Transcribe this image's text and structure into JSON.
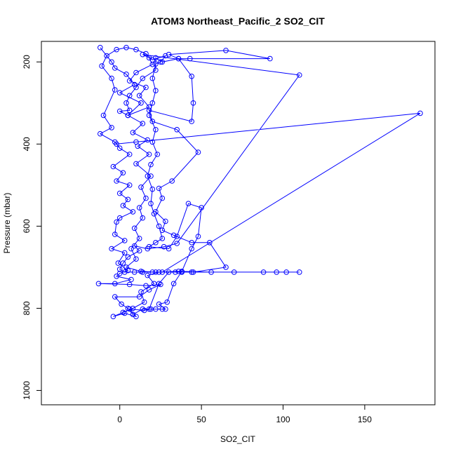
{
  "chart_data": {
    "type": "line",
    "title": "ATOM3 Northeast_Pacific_2 SO2_CIT",
    "xlabel": "SO2_CIT",
    "ylabel": "Pressure (mbar)",
    "xlim": [
      -48,
      193
    ],
    "ylim": [
      1035,
      150
    ],
    "y_reversed": true,
    "x_ticks": [
      0,
      50,
      100,
      150
    ],
    "y_ticks": [
      200,
      400,
      600,
      800,
      1000
    ],
    "grid": false,
    "legend": "none",
    "series_color": "#0000ff",
    "marker": "open-circle",
    "series": [
      {
        "name": "",
        "points": [
          [
            -12,
            165
          ],
          [
            -5,
            200
          ],
          [
            -3,
            215
          ],
          [
            4,
            230
          ],
          [
            9,
            255
          ],
          [
            0,
            275
          ],
          [
            13,
            300
          ],
          [
            5,
            330
          ],
          [
            14,
            350
          ],
          [
            8,
            372
          ],
          [
            17,
            390
          ],
          [
            11,
            405
          ],
          [
            18,
            425
          ],
          [
            10,
            448
          ],
          [
            19,
            478
          ],
          [
            13,
            505
          ],
          [
            16,
            532
          ],
          [
            12,
            555
          ],
          [
            14,
            580
          ],
          [
            9,
            605
          ],
          [
            12,
            630
          ],
          [
            7,
            655
          ],
          [
            10,
            680
          ],
          [
            4,
            700
          ],
          [
            13,
            710
          ],
          [
            22,
            712
          ],
          [
            34,
            712
          ],
          [
            44,
            712
          ],
          [
            70,
            712
          ],
          [
            88,
            712
          ],
          [
            102,
            712
          ],
          [
            110,
            712
          ],
          [
            96,
            712
          ],
          [
            56,
            712
          ],
          [
            36,
            710
          ],
          [
            24,
            712
          ],
          [
            17,
            720
          ],
          [
            21,
            740
          ],
          [
            13,
            760
          ],
          [
            15,
            785
          ],
          [
            8,
            800
          ],
          [
            2,
            810
          ],
          [
            -4,
            820
          ],
          [
            3,
            812
          ],
          [
            10,
            820
          ],
          [
            6,
            802
          ],
          [
            15,
            805
          ],
          [
            19,
            802
          ],
          [
            22,
            802
          ],
          [
            26,
            802
          ],
          [
            28,
            802
          ],
          [
            24,
            790
          ],
          [
            29,
            785
          ],
          [
            33,
            740
          ],
          [
            38,
            710
          ],
          [
            44,
            655
          ],
          [
            48,
            625
          ],
          [
            50,
            555
          ],
          [
            42,
            545
          ],
          [
            35,
            625
          ],
          [
            30,
            655
          ],
          [
            18,
            650
          ],
          [
            22,
            640
          ],
          [
            26,
            630
          ],
          [
            24,
            600
          ],
          [
            21,
            570
          ],
          [
            19,
            545
          ],
          [
            20,
            510
          ],
          [
            17,
            478
          ],
          [
            19,
            450
          ],
          [
            23,
            425
          ],
          [
            20,
            395
          ],
          [
            22,
            365
          ],
          [
            18,
            330
          ],
          [
            20,
            300
          ],
          [
            22,
            270
          ],
          [
            20,
            240
          ],
          [
            22,
            205
          ],
          [
            25,
            200
          ],
          [
            28,
            185
          ],
          [
            20,
            195
          ],
          [
            16,
            180
          ],
          [
            10,
            170
          ],
          [
            4,
            165
          ],
          [
            -2,
            170
          ],
          [
            -8,
            185
          ],
          [
            -11,
            210
          ],
          [
            -5,
            240
          ],
          [
            -3,
            268
          ],
          [
            -10,
            330
          ],
          [
            -5,
            360
          ],
          [
            -12,
            375
          ],
          [
            -3,
            395
          ],
          [
            0,
            410
          ],
          [
            6,
            425
          ],
          [
            -4,
            455
          ],
          [
            2,
            470
          ],
          [
            -2,
            490
          ],
          [
            6,
            500
          ],
          [
            0,
            520
          ],
          [
            5,
            535
          ],
          [
            2,
            550
          ],
          [
            8,
            565
          ],
          [
            0,
            580
          ],
          [
            -2,
            590
          ],
          [
            -3,
            620
          ],
          [
            3,
            635
          ],
          [
            -5,
            655
          ],
          [
            3,
            665
          ],
          [
            -1,
            690
          ],
          [
            5,
            708
          ],
          [
            0,
            715
          ],
          [
            -2,
            722
          ],
          [
            7,
            730
          ],
          [
            -3,
            740
          ],
          [
            -13,
            740
          ],
          [
            6,
            742
          ],
          [
            16,
            745
          ],
          [
            25,
            742
          ],
          [
            18,
            755
          ],
          [
            12,
            772
          ],
          [
            -3,
            772
          ],
          [
            1,
            790
          ],
          [
            5,
            800
          ],
          [
            8,
            815
          ],
          [
            14,
            802
          ],
          [
            18,
            802
          ],
          [
            24,
            740
          ],
          [
            30,
            712
          ],
          [
            38,
            712
          ],
          [
            45,
            712
          ],
          [
            65,
            700
          ],
          [
            55,
            640
          ],
          [
            44,
            640
          ],
          [
            33,
            622
          ],
          [
            26,
            610
          ],
          [
            28,
            588
          ],
          [
            22,
            565
          ],
          [
            26,
            532
          ],
          [
            24,
            508
          ],
          [
            32,
            490
          ],
          [
            48,
            420
          ],
          [
            35,
            365
          ],
          [
            20,
            345
          ],
          [
            18,
            318
          ],
          [
            44,
            345
          ],
          [
            45,
            300
          ],
          [
            44,
            235
          ],
          [
            36,
            192
          ],
          [
            30,
            182
          ],
          [
            65,
            172
          ],
          [
            92,
            192
          ],
          [
            43,
            192
          ],
          [
            36,
            192
          ],
          [
            26,
            200
          ],
          [
            22,
            190
          ],
          [
            22,
            220
          ],
          [
            14,
            240
          ],
          [
            10,
            262
          ],
          [
            6,
            282
          ],
          [
            4,
            300
          ],
          [
            6,
            318
          ],
          [
            0,
            320
          ],
          [
            5,
            330
          ],
          [
            18,
            310
          ],
          [
            12,
            282
          ],
          [
            16,
            262
          ],
          [
            6,
            246
          ],
          [
            10,
            226
          ],
          [
            20,
            206
          ],
          [
            18,
            190
          ],
          [
            14,
            182
          ],
          [
            110,
            232
          ],
          [
            35,
            642
          ],
          [
            27,
            650
          ],
          [
            17,
            655
          ],
          [
            9,
            648
          ],
          [
            12,
            660
          ],
          [
            5,
            675
          ],
          [
            2,
            690
          ],
          [
            0,
            705
          ],
          [
            3,
            712
          ],
          [
            9,
            712
          ],
          [
            14,
            712
          ],
          [
            20,
            712
          ],
          [
            26,
            712
          ],
          [
            184,
            325
          ],
          [
            10,
            395
          ],
          [
            -2,
            400
          ]
        ]
      }
    ]
  }
}
